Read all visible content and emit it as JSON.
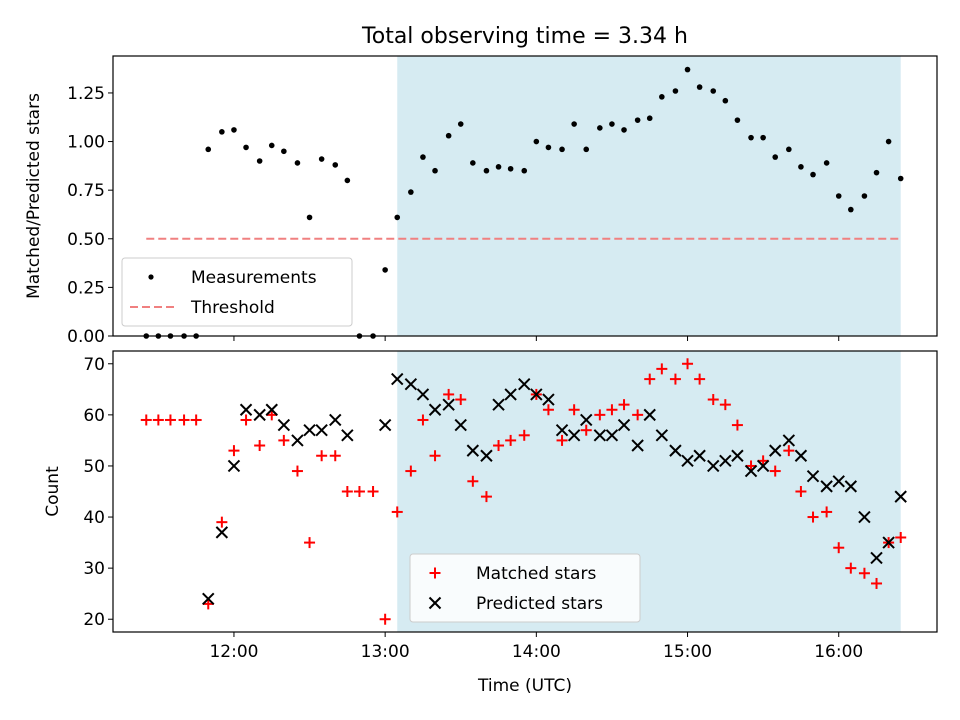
{
  "chart_data": [
    {
      "type": "scatter",
      "title": "Total observing time = 3.34 h",
      "xlabel": "",
      "ylabel": "Matched/Predicted stars",
      "xlim": [
        11.2,
        16.65
      ],
      "ylim": [
        0,
        1.44
      ],
      "yticks": [
        0.0,
        0.25,
        0.5,
        0.75,
        1.0,
        1.25
      ],
      "ytick_labels": [
        "0.00",
        "0.25",
        "0.50",
        "0.75",
        "1.00",
        "1.25"
      ],
      "xticks": [
        12,
        13,
        14,
        15,
        16
      ],
      "shaded_span": [
        13.08,
        16.41
      ],
      "legend_position": "lower-left",
      "threshold": {
        "name": "Threshold",
        "y": 0.5,
        "x_range": [
          11.42,
          16.41
        ],
        "color": "#f08080"
      },
      "series": [
        {
          "name": "Measurements",
          "color": "#000000",
          "x": [
            11.42,
            11.5,
            11.58,
            11.67,
            11.75,
            11.83,
            11.92,
            12.0,
            12.08,
            12.17,
            12.25,
            12.33,
            12.42,
            12.5,
            12.58,
            12.67,
            12.75,
            12.83,
            12.92,
            13.0,
            13.08,
            13.17,
            13.25,
            13.33,
            13.42,
            13.5,
            13.58,
            13.67,
            13.75,
            13.83,
            13.92,
            14.0,
            14.08,
            14.17,
            14.25,
            14.33,
            14.42,
            14.5,
            14.58,
            14.67,
            14.75,
            14.83,
            14.92,
            15.0,
            15.08,
            15.17,
            15.25,
            15.33,
            15.42,
            15.5,
            15.58,
            15.67,
            15.75,
            15.83,
            15.92,
            16.0,
            16.08,
            16.17,
            16.25,
            16.33,
            16.41
          ],
          "y": [
            0.0,
            0.0,
            0.0,
            0.0,
            0.0,
            0.96,
            1.05,
            1.06,
            0.97,
            0.9,
            0.98,
            0.95,
            0.89,
            0.61,
            0.91,
            0.88,
            0.8,
            0.0,
            0.0,
            0.34,
            0.61,
            0.74,
            0.92,
            0.85,
            1.03,
            1.09,
            0.89,
            0.85,
            0.87,
            0.86,
            0.85,
            1.0,
            0.97,
            0.96,
            1.09,
            0.96,
            1.07,
            1.09,
            1.06,
            1.11,
            1.12,
            1.23,
            1.26,
            1.37,
            1.28,
            1.26,
            1.21,
            1.11,
            1.02,
            1.02,
            0.92,
            0.96,
            0.87,
            0.83,
            0.89,
            0.72,
            0.65,
            0.72,
            0.84,
            1.0,
            0.81
          ]
        }
      ]
    },
    {
      "type": "scatter",
      "title": "",
      "xlabel": "Time (UTC)",
      "ylabel": "Count",
      "xlim": [
        11.2,
        16.65
      ],
      "ylim": [
        17.5,
        72.5
      ],
      "yticks": [
        20,
        30,
        40,
        50,
        60,
        70
      ],
      "xticks": [
        12,
        13,
        14,
        15,
        16
      ],
      "xtick_labels": [
        "12:00",
        "13:00",
        "14:00",
        "15:00",
        "16:00"
      ],
      "shaded_span": [
        13.08,
        16.41
      ],
      "legend_position": "lower-center",
      "series": [
        {
          "name": "Matched stars",
          "marker": "+",
          "color": "#ff0000",
          "x": [
            11.42,
            11.5,
            11.58,
            11.67,
            11.75,
            11.83,
            11.92,
            12.0,
            12.08,
            12.17,
            12.25,
            12.33,
            12.42,
            12.5,
            12.58,
            12.67,
            12.75,
            12.83,
            12.92,
            13.0,
            13.08,
            13.17,
            13.25,
            13.33,
            13.42,
            13.5,
            13.58,
            13.67,
            13.75,
            13.83,
            13.92,
            14.0,
            14.08,
            14.17,
            14.25,
            14.33,
            14.42,
            14.5,
            14.58,
            14.67,
            14.75,
            14.83,
            14.92,
            15.0,
            15.08,
            15.17,
            15.25,
            15.33,
            15.42,
            15.5,
            15.58,
            15.67,
            15.75,
            15.83,
            15.92,
            16.0,
            16.08,
            16.17,
            16.25,
            16.33,
            16.41
          ],
          "y": [
            59,
            59,
            59,
            59,
            59,
            23,
            39,
            53,
            59,
            54,
            60,
            55,
            49,
            35,
            52,
            52,
            45,
            45,
            45,
            20,
            41,
            49,
            59,
            52,
            64,
            63,
            47,
            44,
            54,
            55,
            56,
            64,
            61,
            55,
            61,
            57,
            60,
            61,
            62,
            60,
            67,
            69,
            67,
            70,
            67,
            63,
            62,
            58,
            50,
            51,
            49,
            53,
            45,
            40,
            41,
            34,
            30,
            29,
            27,
            35,
            36
          ]
        },
        {
          "name": "Predicted stars",
          "marker": "x",
          "color": "#000000",
          "x": [
            11.83,
            11.92,
            12.0,
            12.08,
            12.17,
            12.25,
            12.33,
            12.42,
            12.5,
            12.58,
            12.67,
            12.75,
            13.0,
            13.08,
            13.17,
            13.25,
            13.33,
            13.42,
            13.5,
            13.58,
            13.67,
            13.75,
            13.83,
            13.92,
            14.0,
            14.08,
            14.17,
            14.25,
            14.33,
            14.42,
            14.5,
            14.58,
            14.67,
            14.75,
            14.83,
            14.92,
            15.0,
            15.08,
            15.17,
            15.25,
            15.33,
            15.42,
            15.5,
            15.58,
            15.67,
            15.75,
            15.83,
            15.92,
            16.0,
            16.08,
            16.17,
            16.25,
            16.33,
            16.41
          ],
          "y": [
            24,
            37,
            50,
            61,
            60,
            61,
            58,
            55,
            57,
            57,
            59,
            56,
            58,
            67,
            66,
            64,
            61,
            62,
            58,
            53,
            52,
            62,
            64,
            66,
            64,
            63,
            57,
            56,
            59,
            56,
            56,
            58,
            54,
            60,
            56,
            53,
            51,
            52,
            50,
            51,
            52,
            49,
            50,
            53,
            55,
            52,
            48,
            46,
            47,
            46,
            40,
            32,
            35,
            44
          ]
        }
      ]
    }
  ]
}
